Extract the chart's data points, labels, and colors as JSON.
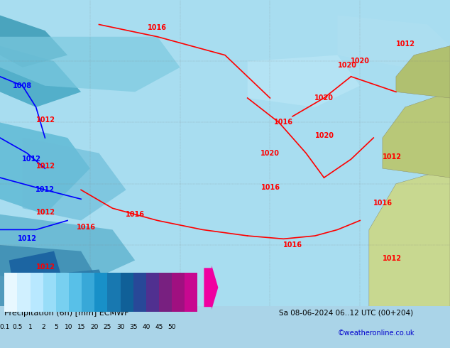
{
  "title": "Precipitation (6h) [mm] ECMWF",
  "date_label": "Sa 08-06-2024 06..12 UTC (00+204)",
  "watermark": "©weatheronline.co.uk",
  "colorbar_values": [
    0.1,
    0.5,
    1,
    2,
    5,
    10,
    15,
    20,
    25,
    30,
    35,
    40,
    45,
    50
  ],
  "colorbar_colors": [
    "#e0f8ff",
    "#c0f0ff",
    "#a0e8f8",
    "#80dff0",
    "#60d0e8",
    "#40b8e0",
    "#20a0d0",
    "#0080c0",
    "#0060a8",
    "#4040a0",
    "#800090",
    "#b000b0",
    "#d000c0",
    "#f000d0",
    "#ff10e0"
  ],
  "bg_color": "#87ceeb",
  "fig_width": 6.34,
  "fig_height": 4.9,
  "dpi": 100
}
